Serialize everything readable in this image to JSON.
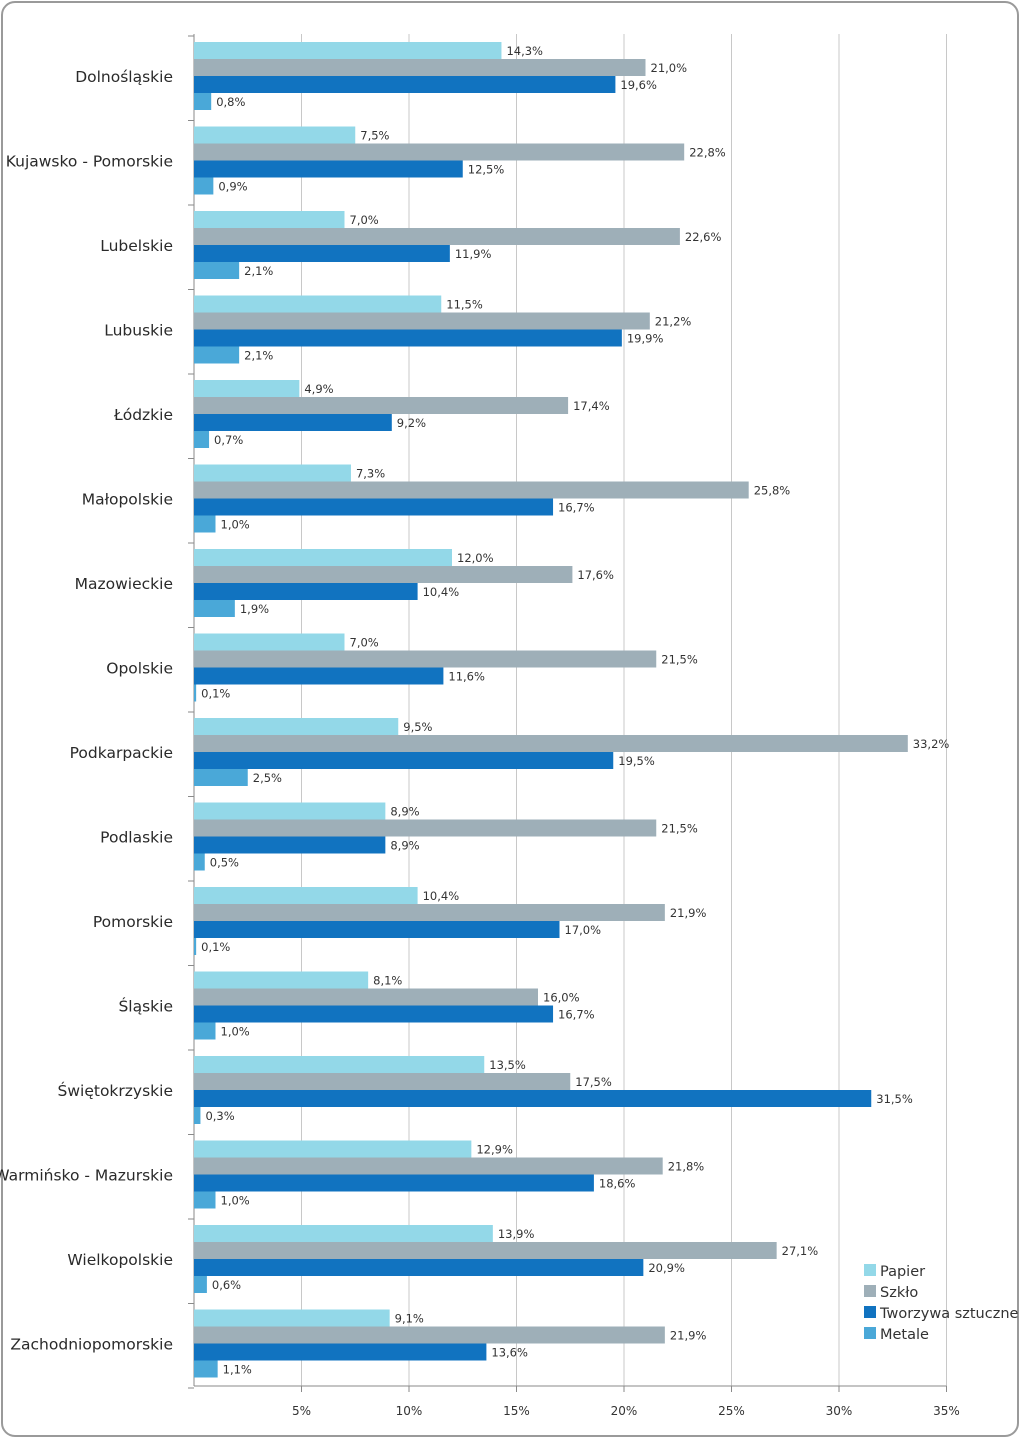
{
  "chart_data": {
    "type": "bar",
    "orientation": "horizontal",
    "title": "",
    "xlabel": "",
    "ylabel": "",
    "xlim": [
      0,
      35
    ],
    "grid": true,
    "legend_position": "bottom-right",
    "tick_values": [
      5,
      10,
      15,
      20,
      25,
      30,
      35
    ],
    "tick_labels": [
      "5%",
      "10%",
      "15%",
      "20%",
      "25%",
      "30%",
      "35%"
    ],
    "categories": [
      "Dolnośląskie",
      "Kujawsko - Pomorskie",
      "Lubelskie",
      "Lubuskie",
      "Łódzkie",
      "Małopolskie",
      "Mazowieckie",
      "Opolskie",
      "Podkarpackie",
      "Podlaskie",
      "Pomorskie",
      "Śląskie",
      "Świętokrzyskie",
      "Warmińsko - Mazurskie",
      "Wielkopolskie",
      "Zachodniopomorskie"
    ],
    "series": [
      {
        "name": "Papier",
        "color": "#93d8e8",
        "values": [
          14.3,
          7.5,
          7.0,
          11.5,
          4.9,
          7.3,
          12.0,
          7.0,
          9.5,
          8.9,
          10.4,
          8.1,
          13.5,
          12.9,
          13.9,
          9.1
        ],
        "labels": [
          "14,3%",
          "7,5%",
          "7,0%",
          "11,5%",
          "4,9%",
          "7,3%",
          "12,0%",
          "7,0%",
          "9,5%",
          "8,9%",
          "10,4%",
          "8,1%",
          "13,5%",
          "12,9%",
          "13,9%",
          "9,1%"
        ]
      },
      {
        "name": "Szkło",
        "color": "#9eafb8",
        "values": [
          21.0,
          22.8,
          22.6,
          21.2,
          17.4,
          25.8,
          17.6,
          21.5,
          33.2,
          21.5,
          21.9,
          16.0,
          17.5,
          21.8,
          27.1,
          21.9
        ],
        "labels": [
          "21,0%",
          "22,8%",
          "22,6%",
          "21,2%",
          "17,4%",
          "25,8%",
          "17,6%",
          "21,5%",
          "33,2%",
          "21,5%",
          "21,9%",
          "16,0%",
          "17,5%",
          "21,8%",
          "27,1%",
          "21,9%"
        ]
      },
      {
        "name": "Tworzywa sztuczne",
        "color": "#1173c0",
        "values": [
          19.6,
          12.5,
          11.9,
          19.9,
          9.2,
          16.7,
          10.4,
          11.6,
          19.5,
          8.9,
          17.0,
          16.7,
          31.5,
          18.6,
          20.9,
          13.6
        ],
        "labels": [
          "19,6%",
          "12,5%",
          "11,9%",
          "19,9%",
          "9,2%",
          "16,7%",
          "10,4%",
          "11,6%",
          "19,5%",
          "8,9%",
          "17,0%",
          "16,7%",
          "31,5%",
          "18,6%",
          "20,9%",
          "13,6%"
        ]
      },
      {
        "name": "Metale",
        "color": "#4aa8d8",
        "values": [
          0.8,
          0.9,
          2.1,
          2.1,
          0.7,
          1.0,
          1.9,
          0.1,
          2.5,
          0.5,
          0.1,
          1.0,
          0.3,
          1.0,
          0.6,
          1.1
        ],
        "labels": [
          "0,8%",
          "0,9%",
          "2,1%",
          "2,1%",
          "0,7%",
          "1,0%",
          "1,9%",
          "0,1%",
          "2,5%",
          "0,5%",
          "0,1%",
          "1,0%",
          "0,3%",
          "1,0%",
          "0,6%",
          "1,1%"
        ]
      }
    ]
  }
}
